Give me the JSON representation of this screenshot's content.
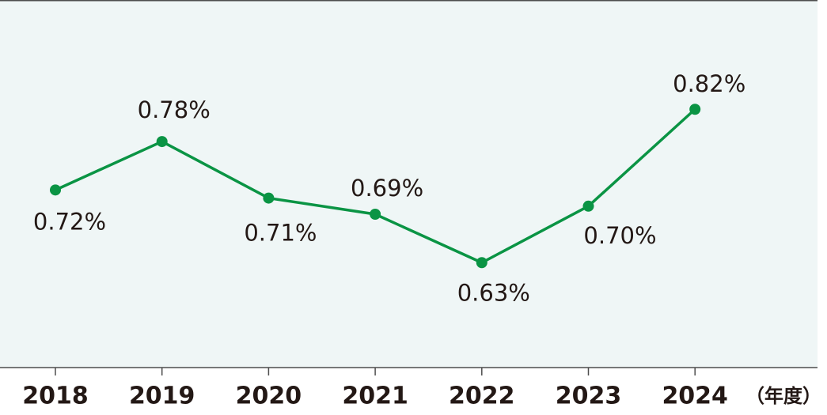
{
  "chart_data": {
    "type": "line",
    "categories": [
      "2018",
      "2019",
      "2020",
      "2021",
      "2022",
      "2023",
      "2024"
    ],
    "x_label": "（年度）",
    "series": [
      {
        "color": "#0a9444",
        "values": [
          0.72,
          0.78,
          0.71,
          0.69,
          0.63,
          0.7,
          0.82
        ],
        "value_labels": [
          "0.72%",
          "0.78%",
          "0.71%",
          "0.69%",
          "0.63%",
          "0.70%",
          "0.82%"
        ]
      }
    ],
    "ylim": [
      0.5,
      0.95
    ]
  }
}
